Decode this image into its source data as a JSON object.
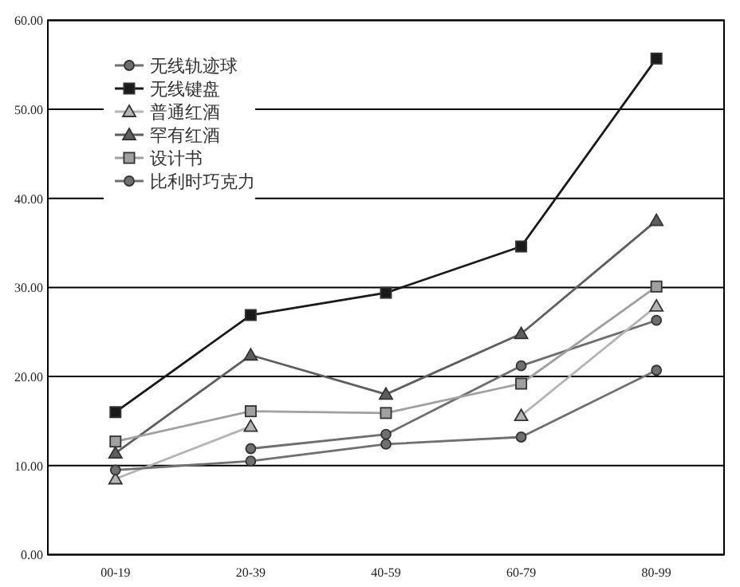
{
  "chart_data": {
    "type": "line",
    "categories": [
      "00-19",
      "20-39",
      "40-59",
      "60-79",
      "80-99"
    ],
    "series": [
      {
        "name": "无线轨迹球",
        "color": "#6e6e6e",
        "marker": "circle",
        "values": [
          null,
          11.9,
          13.5,
          21.2,
          26.3
        ]
      },
      {
        "name": "无线键盘",
        "color": "#1a1a1a",
        "marker": "square",
        "values": [
          16.0,
          26.9,
          29.4,
          34.6,
          55.7
        ]
      },
      {
        "name": "普通红酒",
        "color": "#b4b4b4",
        "marker": "triangle",
        "values": [
          8.5,
          14.4,
          null,
          15.6,
          27.9
        ]
      },
      {
        "name": "罕有红酒",
        "color": "#5e5e5e",
        "marker": "triangle",
        "values": [
          11.4,
          22.4,
          18.0,
          24.8,
          37.5
        ]
      },
      {
        "name": "设计书",
        "color": "#a0a0a0",
        "marker": "square",
        "values": [
          12.7,
          16.1,
          15.9,
          19.2,
          30.1
        ]
      },
      {
        "name": "比利时巧克力",
        "color": "#707070",
        "marker": "circle",
        "values": [
          9.5,
          10.5,
          12.4,
          13.2,
          20.7
        ]
      }
    ],
    "ylim": [
      0,
      60
    ],
    "yticks": [
      {
        "value": 0,
        "label": "0.00"
      },
      {
        "value": 10,
        "label": "10.00"
      },
      {
        "value": 20,
        "label": "20.00"
      },
      {
        "value": 30,
        "label": "30.00"
      },
      {
        "value": 40,
        "label": "40.00"
      },
      {
        "value": 50,
        "label": "50.00"
      },
      {
        "value": 60,
        "label": "60.00"
      }
    ],
    "grid": "y",
    "legend": "top left"
  }
}
